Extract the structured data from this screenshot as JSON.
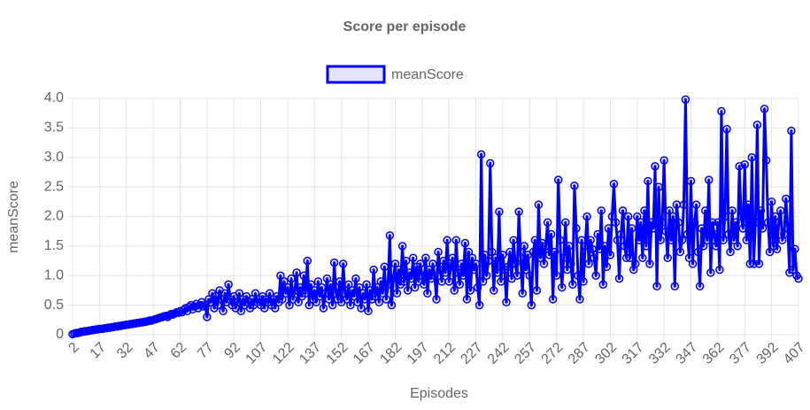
{
  "chart_data": {
    "type": "line",
    "title": "Score per episode",
    "xlabel": "Episodes",
    "ylabel": "meanScore",
    "xlim": [
      2,
      407
    ],
    "ylim": [
      0,
      4
    ],
    "grid": true,
    "legend": "top",
    "xticks": [
      2,
      17,
      32,
      47,
      62,
      77,
      92,
      107,
      122,
      137,
      152,
      167,
      182,
      197,
      212,
      227,
      242,
      257,
      272,
      287,
      302,
      317,
      332,
      347,
      362,
      377,
      392,
      407
    ],
    "yticks": [
      0,
      0.5,
      {
        "value": 1,
        "label": "1.0"
      },
      1.5,
      {
        "value": 2,
        "label": "2.0"
      },
      2.5,
      {
        "value": 3,
        "label": "3.0"
      },
      3.5,
      {
        "value": 4,
        "label": "4.0"
      }
    ],
    "x": [
      2,
      3,
      4,
      5,
      6,
      7,
      8,
      9,
      10,
      11,
      12,
      13,
      14,
      15,
      16,
      17,
      18,
      19,
      20,
      21,
      22,
      23,
      24,
      25,
      26,
      27,
      28,
      29,
      30,
      31,
      32,
      33,
      34,
      35,
      36,
      37,
      38,
      39,
      40,
      41,
      42,
      43,
      44,
      45,
      46,
      47,
      48,
      49,
      50,
      51,
      52,
      53,
      54,
      55,
      56,
      57,
      58,
      59,
      60,
      61,
      62,
      63,
      64,
      65,
      66,
      67,
      68,
      69,
      70,
      71,
      72,
      73,
      74,
      75,
      76,
      77,
      78,
      79,
      80,
      81,
      82,
      83,
      84,
      85,
      86,
      87,
      88,
      89,
      90,
      91,
      92,
      93,
      94,
      95,
      96,
      97,
      98,
      99,
      100,
      101,
      102,
      103,
      104,
      105,
      106,
      107,
      108,
      109,
      110,
      111,
      112,
      113,
      114,
      115,
      116,
      117,
      118,
      119,
      120,
      121,
      122,
      123,
      124,
      125,
      126,
      127,
      128,
      129,
      130,
      131,
      132,
      133,
      134,
      135,
      136,
      137,
      138,
      139,
      140,
      141,
      142,
      143,
      144,
      145,
      146,
      147,
      148,
      149,
      150,
      151,
      152,
      153,
      154,
      155,
      156,
      157,
      158,
      159,
      160,
      161,
      162,
      163,
      164,
      165,
      166,
      167,
      168,
      169,
      170,
      171,
      172,
      173,
      174,
      175,
      176,
      177,
      178,
      179,
      180,
      181,
      182,
      183,
      184,
      185,
      186,
      187,
      188,
      189,
      190,
      191,
      192,
      193,
      194,
      195,
      196,
      197,
      198,
      199,
      200,
      201,
      202,
      203,
      204,
      205,
      206,
      207,
      208,
      209,
      210,
      211,
      212,
      213,
      214,
      215,
      216,
      217,
      218,
      219,
      220,
      221,
      222,
      223,
      224,
      225,
      226,
      227,
      228,
      229,
      230,
      231,
      232,
      233,
      234,
      235,
      236,
      237,
      238,
      239,
      240,
      241,
      242,
      243,
      244,
      245,
      246,
      247,
      248,
      249,
      250,
      251,
      252,
      253,
      254,
      255,
      256,
      257,
      258,
      259,
      260,
      261,
      262,
      263,
      264,
      265,
      266,
      267,
      268,
      269,
      270,
      271,
      272,
      273,
      274,
      275,
      276,
      277,
      278,
      279,
      280,
      281,
      282,
      283,
      284,
      285,
      286,
      287,
      288,
      289,
      290,
      291,
      292,
      293,
      294,
      295,
      296,
      297,
      298,
      299,
      300,
      301,
      302,
      303,
      304,
      305,
      306,
      307,
      308,
      309,
      310,
      311,
      312,
      313,
      314,
      315,
      316,
      317,
      318,
      319,
      320,
      321,
      322,
      323,
      324,
      325,
      326,
      327,
      328,
      329,
      330,
      331,
      332,
      333,
      334,
      335,
      336,
      337,
      338,
      339,
      340,
      341,
      342,
      343,
      344,
      345,
      346,
      347,
      348,
      349,
      350,
      351,
      352,
      353,
      354,
      355,
      356,
      357,
      358,
      359,
      360,
      361,
      362,
      363,
      364,
      365,
      366,
      367,
      368,
      369,
      370,
      371,
      372,
      373,
      374,
      375,
      376,
      377,
      378,
      379,
      380,
      381,
      382,
      383,
      384,
      385,
      386,
      387,
      388,
      389,
      390,
      391,
      392,
      393,
      394,
      395,
      396,
      397,
      398,
      399,
      400,
      401,
      402,
      403,
      404,
      405,
      406,
      407
    ],
    "series": [
      {
        "name": "meanScore",
        "color": "#0000ff",
        "values": [
          0.01,
          0.02,
          0.03,
          0.03,
          0.04,
          0.05,
          0.05,
          0.06,
          0.06,
          0.07,
          0.07,
          0.08,
          0.08,
          0.09,
          0.09,
          0.1,
          0.1,
          0.1,
          0.11,
          0.11,
          0.12,
          0.12,
          0.13,
          0.13,
          0.14,
          0.14,
          0.15,
          0.15,
          0.16,
          0.16,
          0.17,
          0.17,
          0.18,
          0.18,
          0.19,
          0.19,
          0.2,
          0.2,
          0.21,
          0.21,
          0.22,
          0.22,
          0.23,
          0.24,
          0.24,
          0.25,
          0.26,
          0.27,
          0.28,
          0.29,
          0.3,
          0.31,
          0.32,
          0.3,
          0.33,
          0.35,
          0.34,
          0.36,
          0.38,
          0.37,
          0.4,
          0.38,
          0.42,
          0.45,
          0.4,
          0.47,
          0.5,
          0.43,
          0.48,
          0.52,
          0.45,
          0.5,
          0.55,
          0.48,
          0.5,
          0.3,
          0.6,
          0.55,
          0.7,
          0.45,
          0.65,
          0.5,
          0.75,
          0.6,
          0.4,
          0.7,
          0.55,
          0.85,
          0.6,
          0.5,
          0.65,
          0.45,
          0.55,
          0.7,
          0.4,
          0.6,
          0.5,
          0.65,
          0.55,
          0.45,
          0.6,
          0.5,
          0.7,
          0.55,
          0.6,
          0.5,
          0.65,
          0.45,
          0.6,
          0.55,
          0.7,
          0.5,
          0.6,
          0.45,
          0.65,
          0.55,
          1.0,
          0.6,
          0.9,
          0.7,
          0.8,
          0.5,
          0.95,
          0.6,
          0.75,
          1.05,
          0.55,
          0.8,
          0.65,
          1.0,
          0.7,
          1.25,
          0.5,
          0.85,
          0.6,
          0.75,
          0.55,
          0.9,
          0.65,
          0.8,
          0.45,
          0.7,
          0.95,
          0.6,
          0.85,
          0.5,
          1.22,
          0.7,
          0.6,
          0.9,
          0.55,
          1.2,
          0.7,
          0.6,
          0.85,
          0.5,
          0.75,
          0.65,
          0.95,
          0.55,
          0.8,
          0.45,
          0.7,
          0.6,
          0.85,
          0.4,
          0.75,
          0.6,
          1.1,
          0.65,
          0.8,
          0.55,
          0.9,
          0.7,
          1.15,
          0.6,
          0.85,
          1.68,
          0.5,
          0.95,
          1.2,
          0.7,
          1.1,
          0.85,
          1.5,
          0.9,
          1.25,
          0.75,
          1.05,
          0.95,
          1.3,
          0.8,
          1.15,
          0.9,
          1.2,
          1.0,
          0.85,
          1.3,
          0.7,
          1.1,
          0.95,
          1.2,
          1.0,
          0.6,
          1.4,
          1.1,
          0.9,
          1.25,
          1.05,
          1.6,
          0.9,
          1.15,
          1.3,
          0.75,
          1.6,
          1.05,
          0.85,
          1.2,
          1.0,
          1.55,
          0.6,
          1.4,
          0.75,
          1.3,
          1.1,
          1.2,
          0.8,
          0.5,
          3.05,
          0.9,
          1.35,
          1.0,
          1.25,
          2.9,
          1.4,
          0.75,
          1.3,
          1.05,
          2.08,
          0.9,
          1.35,
          1.1,
          0.55,
          1.15,
          1.4,
          0.95,
          1.6,
          1.2,
          1.0,
          2.08,
          1.3,
          0.7,
          1.5,
          1.1,
          1.35,
          1.0,
          0.5,
          1.4,
          1.6,
          0.75,
          2.2,
          1.3,
          1.55,
          1.2,
          1.5,
          1.9,
          1.35,
          1.7,
          0.6,
          1.4,
          1.0,
          2.62,
          1.6,
          0.8,
          1.3,
          1.9,
          1.1,
          1.5,
          1.2,
          0.85,
          2.52,
          1.8,
          1.0,
          0.6,
          1.6,
          0.9,
          1.5,
          2.0,
          1.2,
          1.6,
          1.45,
          1.3,
          1.0,
          1.7,
          1.45,
          2.1,
          0.85,
          1.5,
          1.15,
          1.8,
          1.35,
          2.0,
          2.55,
          1.9,
          1.6,
          0.95,
          1.7,
          2.1,
          1.5,
          1.3,
          2.0,
          1.3,
          1.8,
          1.1,
          1.2,
          2.0,
          1.6,
          1.9,
          1.3,
          2.1,
          1.5,
          2.6,
          1.2,
          1.9,
          1.8,
          2.85,
          0.82,
          2.5,
          1.6,
          1.9,
          2.95,
          1.75,
          1.3,
          2.1,
          1.6,
          2.0,
          0.82,
          2.2,
          1.9,
          1.4,
          1.6,
          2.2,
          3.98,
          1.7,
          1.3,
          2.6,
          1.2,
          1.9,
          2.2,
          1.4,
          0.82,
          1.8,
          1.5,
          2.1,
          1.6,
          2.62,
          1.05,
          1.9,
          1.7,
          1.5,
          1.9,
          1.1,
          3.78,
          1.6,
          2.0,
          3.48,
          1.7,
          1.4,
          2.1,
          1.6,
          1.9,
          1.5,
          2.85,
          2.0,
          1.8,
          2.88,
          1.6,
          2.2,
          1.2,
          3.0,
          1.2,
          1.9,
          3.55,
          1.2,
          2.1,
          1.8,
          3.82,
          2.95,
          1.9,
          1.4,
          2.25,
          1.5,
          2.0,
          1.45,
          1.9,
          2.1,
          1.6,
          1.7,
          2.3,
          1.8,
          1.05,
          3.45,
          1.1,
          1.45,
          1.0,
          0.95
        ]
      }
    ]
  }
}
